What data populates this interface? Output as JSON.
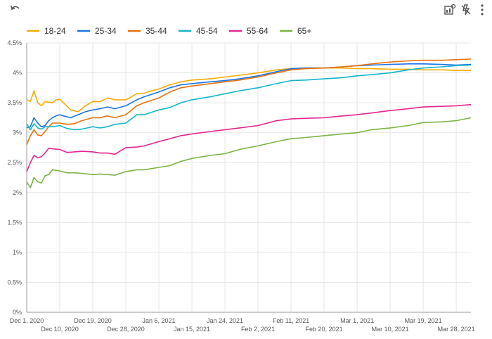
{
  "toolbar": {
    "undo_icon": "undo-icon",
    "explore_icon": "chart-explore-icon",
    "flash_icon": "flash-off-icon",
    "more_icon": "more-vert-icon"
  },
  "chart_data": {
    "type": "line",
    "title": "",
    "xlabel": "",
    "ylabel": "",
    "ylim": [
      0,
      4.5
    ],
    "y_unit": "%",
    "y_ticks": [
      "0%",
      "0.5%",
      "1%",
      "1.5%",
      "2%",
      "2.5%",
      "3%",
      "3.5%",
      "4%",
      "4.5%"
    ],
    "x_range": [
      "2020-12-01",
      "2021-04-01"
    ],
    "x_ticks": [
      {
        "label": "Dec 1, 2020",
        "date": "2020-12-01",
        "row": 0
      },
      {
        "label": "Dec 10, 2020",
        "date": "2020-12-10",
        "row": 1
      },
      {
        "label": "Dec 19, 2020",
        "date": "2020-12-19",
        "row": 0
      },
      {
        "label": "Dec 28, 2020",
        "date": "2020-12-28",
        "row": 1
      },
      {
        "label": "Jan 6, 2021",
        "date": "2021-01-06",
        "row": 0
      },
      {
        "label": "Jan 15, 2021",
        "date": "2021-01-15",
        "row": 1
      },
      {
        "label": "Jan 24, 2021",
        "date": "2021-01-24",
        "row": 0
      },
      {
        "label": "Feb 2, 2021",
        "date": "2021-02-02",
        "row": 1
      },
      {
        "label": "Feb 11, 2021",
        "date": "2021-02-11",
        "row": 0
      },
      {
        "label": "Feb 20, 2021",
        "date": "2021-02-20",
        "row": 1
      },
      {
        "label": "Mar 1, 2021",
        "date": "2021-03-01",
        "row": 0
      },
      {
        "label": "Mar 10, 2021",
        "date": "2021-03-10",
        "row": 1
      },
      {
        "label": "Mar 19, 2021",
        "date": "2021-03-19",
        "row": 0
      },
      {
        "label": "Mar 28, 2021",
        "date": "2021-03-28",
        "row": 1
      }
    ],
    "grid": true,
    "legend_position": "top-left",
    "series": [
      {
        "name": "18-24",
        "color": "#f9ab00",
        "points": [
          [
            "2020-12-01",
            3.55
          ],
          [
            "2020-12-02",
            3.52
          ],
          [
            "2020-12-03",
            3.7
          ],
          [
            "2020-12-04",
            3.5
          ],
          [
            "2020-12-05",
            3.45
          ],
          [
            "2020-12-06",
            3.52
          ],
          [
            "2020-12-08",
            3.5
          ],
          [
            "2020-12-09",
            3.55
          ],
          [
            "2020-12-10",
            3.56
          ],
          [
            "2020-12-11",
            3.5
          ],
          [
            "2020-12-13",
            3.38
          ],
          [
            "2020-12-15",
            3.35
          ],
          [
            "2020-12-17",
            3.45
          ],
          [
            "2020-12-19",
            3.52
          ],
          [
            "2020-12-21",
            3.52
          ],
          [
            "2020-12-23",
            3.58
          ],
          [
            "2020-12-25",
            3.55
          ],
          [
            "2020-12-28",
            3.55
          ],
          [
            "2020-12-31",
            3.65
          ],
          [
            "2021-01-02",
            3.66
          ],
          [
            "2021-01-04",
            3.7
          ],
          [
            "2021-01-06",
            3.73
          ],
          [
            "2021-01-09",
            3.8
          ],
          [
            "2021-01-12",
            3.85
          ],
          [
            "2021-01-15",
            3.88
          ],
          [
            "2021-01-20",
            3.9
          ],
          [
            "2021-01-24",
            3.93
          ],
          [
            "2021-01-28",
            3.96
          ],
          [
            "2021-02-02",
            4.0
          ],
          [
            "2021-02-07",
            4.05
          ],
          [
            "2021-02-11",
            4.07
          ],
          [
            "2021-02-15",
            4.08
          ],
          [
            "2021-02-20",
            4.08
          ],
          [
            "2021-02-25",
            4.08
          ],
          [
            "2021-03-01",
            4.07
          ],
          [
            "2021-03-05",
            4.07
          ],
          [
            "2021-03-10",
            4.06
          ],
          [
            "2021-03-15",
            4.06
          ],
          [
            "2021-03-19",
            4.05
          ],
          [
            "2021-03-24",
            4.05
          ],
          [
            "2021-03-28",
            4.04
          ],
          [
            "2021-04-01",
            4.04
          ]
        ]
      },
      {
        "name": "25-34",
        "color": "#1a73e8",
        "points": [
          [
            "2020-12-01",
            3.08
          ],
          [
            "2020-12-02",
            3.1
          ],
          [
            "2020-12-03",
            3.25
          ],
          [
            "2020-12-04",
            3.16
          ],
          [
            "2020-12-05",
            3.1
          ],
          [
            "2020-12-06",
            3.12
          ],
          [
            "2020-12-07",
            3.2
          ],
          [
            "2020-12-08",
            3.25
          ],
          [
            "2020-12-09",
            3.28
          ],
          [
            "2020-12-10",
            3.3
          ],
          [
            "2020-12-11",
            3.28
          ],
          [
            "2020-12-13",
            3.25
          ],
          [
            "2020-12-15",
            3.3
          ],
          [
            "2020-12-17",
            3.35
          ],
          [
            "2020-12-19",
            3.38
          ],
          [
            "2020-12-21",
            3.4
          ],
          [
            "2020-12-23",
            3.43
          ],
          [
            "2020-12-25",
            3.4
          ],
          [
            "2020-12-28",
            3.45
          ],
          [
            "2020-12-31",
            3.55
          ],
          [
            "2021-01-02",
            3.6
          ],
          [
            "2021-01-06",
            3.68
          ],
          [
            "2021-01-09",
            3.75
          ],
          [
            "2021-01-12",
            3.8
          ],
          [
            "2021-01-15",
            3.82
          ],
          [
            "2021-01-20",
            3.85
          ],
          [
            "2021-01-24",
            3.87
          ],
          [
            "2021-01-28",
            3.9
          ],
          [
            "2021-02-02",
            3.95
          ],
          [
            "2021-02-07",
            4.02
          ],
          [
            "2021-02-11",
            4.07
          ],
          [
            "2021-02-15",
            4.08
          ],
          [
            "2021-02-20",
            4.08
          ],
          [
            "2021-02-25",
            4.1
          ],
          [
            "2021-03-01",
            4.12
          ],
          [
            "2021-03-05",
            4.13
          ],
          [
            "2021-03-10",
            4.14
          ],
          [
            "2021-03-15",
            4.15
          ],
          [
            "2021-03-19",
            4.15
          ],
          [
            "2021-03-24",
            4.14
          ],
          [
            "2021-03-28",
            4.13
          ],
          [
            "2021-04-01",
            4.14
          ]
        ]
      },
      {
        "name": "35-44",
        "color": "#e8710a",
        "points": [
          [
            "2020-12-01",
            2.8
          ],
          [
            "2020-12-02",
            2.95
          ],
          [
            "2020-12-03",
            3.05
          ],
          [
            "2020-12-04",
            2.96
          ],
          [
            "2020-12-05",
            2.95
          ],
          [
            "2020-12-06",
            3.02
          ],
          [
            "2020-12-07",
            3.1
          ],
          [
            "2020-12-08",
            3.16
          ],
          [
            "2020-12-10",
            3.16
          ],
          [
            "2020-12-12",
            3.14
          ],
          [
            "2020-12-14",
            3.15
          ],
          [
            "2020-12-16",
            3.2
          ],
          [
            "2020-12-19",
            3.25
          ],
          [
            "2020-12-21",
            3.25
          ],
          [
            "2020-12-23",
            3.28
          ],
          [
            "2020-12-25",
            3.25
          ],
          [
            "2020-12-28",
            3.3
          ],
          [
            "2020-12-31",
            3.45
          ],
          [
            "2021-01-02",
            3.5
          ],
          [
            "2021-01-06",
            3.58
          ],
          [
            "2021-01-09",
            3.68
          ],
          [
            "2021-01-12",
            3.75
          ],
          [
            "2021-01-15",
            3.78
          ],
          [
            "2021-01-20",
            3.82
          ],
          [
            "2021-01-24",
            3.85
          ],
          [
            "2021-01-28",
            3.88
          ],
          [
            "2021-02-02",
            3.93
          ],
          [
            "2021-02-07",
            4.0
          ],
          [
            "2021-02-11",
            4.05
          ],
          [
            "2021-02-15",
            4.07
          ],
          [
            "2021-02-20",
            4.08
          ],
          [
            "2021-02-25",
            4.1
          ],
          [
            "2021-03-01",
            4.12
          ],
          [
            "2021-03-05",
            4.15
          ],
          [
            "2021-03-10",
            4.18
          ],
          [
            "2021-03-15",
            4.2
          ],
          [
            "2021-03-19",
            4.21
          ],
          [
            "2021-03-24",
            4.21
          ],
          [
            "2021-03-28",
            4.22
          ],
          [
            "2021-04-01",
            4.23
          ]
        ]
      },
      {
        "name": "45-54",
        "color": "#12b5cb",
        "points": [
          [
            "2020-12-01",
            3.15
          ],
          [
            "2020-12-02",
            3.05
          ],
          [
            "2020-12-03",
            3.15
          ],
          [
            "2020-12-04",
            3.08
          ],
          [
            "2020-12-05",
            3.06
          ],
          [
            "2020-12-06",
            3.1
          ],
          [
            "2020-12-08",
            3.1
          ],
          [
            "2020-12-10",
            3.12
          ],
          [
            "2020-12-12",
            3.07
          ],
          [
            "2020-12-14",
            3.05
          ],
          [
            "2020-12-16",
            3.06
          ],
          [
            "2020-12-19",
            3.1
          ],
          [
            "2020-12-21",
            3.08
          ],
          [
            "2020-12-23",
            3.1
          ],
          [
            "2020-12-25",
            3.14
          ],
          [
            "2020-12-28",
            3.16
          ],
          [
            "2020-12-31",
            3.3
          ],
          [
            "2021-01-02",
            3.3
          ],
          [
            "2021-01-06",
            3.38
          ],
          [
            "2021-01-09",
            3.42
          ],
          [
            "2021-01-12",
            3.5
          ],
          [
            "2021-01-15",
            3.55
          ],
          [
            "2021-01-20",
            3.6
          ],
          [
            "2021-01-24",
            3.65
          ],
          [
            "2021-01-28",
            3.7
          ],
          [
            "2021-02-02",
            3.75
          ],
          [
            "2021-02-07",
            3.82
          ],
          [
            "2021-02-11",
            3.87
          ],
          [
            "2021-02-15",
            3.88
          ],
          [
            "2021-02-20",
            3.9
          ],
          [
            "2021-02-25",
            3.92
          ],
          [
            "2021-03-01",
            3.95
          ],
          [
            "2021-03-05",
            3.97
          ],
          [
            "2021-03-10",
            4.0
          ],
          [
            "2021-03-15",
            4.05
          ],
          [
            "2021-03-19",
            4.08
          ],
          [
            "2021-03-24",
            4.1
          ],
          [
            "2021-03-28",
            4.12
          ],
          [
            "2021-04-01",
            4.13
          ]
        ]
      },
      {
        "name": "55-64",
        "color": "#e52592",
        "points": [
          [
            "2020-12-01",
            2.35
          ],
          [
            "2020-12-02",
            2.5
          ],
          [
            "2020-12-03",
            2.62
          ],
          [
            "2020-12-04",
            2.58
          ],
          [
            "2020-12-05",
            2.6
          ],
          [
            "2020-12-06",
            2.66
          ],
          [
            "2020-12-07",
            2.74
          ],
          [
            "2020-12-08",
            2.73
          ],
          [
            "2020-12-10",
            2.72
          ],
          [
            "2020-12-12",
            2.67
          ],
          [
            "2020-12-14",
            2.68
          ],
          [
            "2020-12-16",
            2.69
          ],
          [
            "2020-12-19",
            2.68
          ],
          [
            "2020-12-21",
            2.66
          ],
          [
            "2020-12-23",
            2.66
          ],
          [
            "2020-12-25",
            2.64
          ],
          [
            "2020-12-28",
            2.75
          ],
          [
            "2020-12-31",
            2.76
          ],
          [
            "2021-01-02",
            2.78
          ],
          [
            "2021-01-06",
            2.85
          ],
          [
            "2021-01-09",
            2.9
          ],
          [
            "2021-01-12",
            2.95
          ],
          [
            "2021-01-15",
            2.98
          ],
          [
            "2021-01-20",
            3.02
          ],
          [
            "2021-01-24",
            3.05
          ],
          [
            "2021-01-28",
            3.08
          ],
          [
            "2021-02-02",
            3.12
          ],
          [
            "2021-02-07",
            3.2
          ],
          [
            "2021-02-11",
            3.23
          ],
          [
            "2021-02-15",
            3.24
          ],
          [
            "2021-02-20",
            3.25
          ],
          [
            "2021-02-25",
            3.28
          ],
          [
            "2021-03-01",
            3.3
          ],
          [
            "2021-03-05",
            3.33
          ],
          [
            "2021-03-10",
            3.37
          ],
          [
            "2021-03-15",
            3.4
          ],
          [
            "2021-03-19",
            3.43
          ],
          [
            "2021-03-24",
            3.44
          ],
          [
            "2021-03-28",
            3.45
          ],
          [
            "2021-04-01",
            3.47
          ]
        ]
      },
      {
        "name": "65+",
        "color": "#7cb342",
        "points": [
          [
            "2020-12-01",
            2.18
          ],
          [
            "2020-12-02",
            2.08
          ],
          [
            "2020-12-03",
            2.25
          ],
          [
            "2020-12-04",
            2.18
          ],
          [
            "2020-12-05",
            2.16
          ],
          [
            "2020-12-06",
            2.28
          ],
          [
            "2020-12-07",
            2.3
          ],
          [
            "2020-12-08",
            2.38
          ],
          [
            "2020-12-10",
            2.36
          ],
          [
            "2020-12-12",
            2.33
          ],
          [
            "2020-12-14",
            2.33
          ],
          [
            "2020-12-16",
            2.32
          ],
          [
            "2020-12-19",
            2.3
          ],
          [
            "2020-12-21",
            2.31
          ],
          [
            "2020-12-23",
            2.3
          ],
          [
            "2020-12-25",
            2.29
          ],
          [
            "2020-12-28",
            2.35
          ],
          [
            "2020-12-31",
            2.38
          ],
          [
            "2021-01-02",
            2.38
          ],
          [
            "2021-01-06",
            2.42
          ],
          [
            "2021-01-09",
            2.45
          ],
          [
            "2021-01-12",
            2.52
          ],
          [
            "2021-01-15",
            2.57
          ],
          [
            "2021-01-20",
            2.62
          ],
          [
            "2021-01-24",
            2.65
          ],
          [
            "2021-01-28",
            2.72
          ],
          [
            "2021-02-02",
            2.78
          ],
          [
            "2021-02-07",
            2.85
          ],
          [
            "2021-02-11",
            2.9
          ],
          [
            "2021-02-15",
            2.92
          ],
          [
            "2021-02-20",
            2.95
          ],
          [
            "2021-02-25",
            2.98
          ],
          [
            "2021-03-01",
            3.0
          ],
          [
            "2021-03-05",
            3.05
          ],
          [
            "2021-03-10",
            3.08
          ],
          [
            "2021-03-15",
            3.12
          ],
          [
            "2021-03-19",
            3.17
          ],
          [
            "2021-03-24",
            3.18
          ],
          [
            "2021-03-28",
            3.2
          ],
          [
            "2021-04-01",
            3.25
          ]
        ]
      }
    ]
  }
}
